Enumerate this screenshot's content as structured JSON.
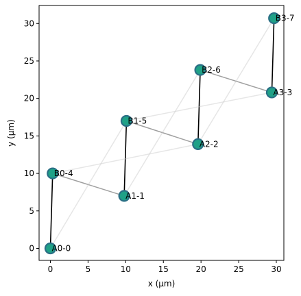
{
  "chart_data": {
    "type": "scatter",
    "title": "",
    "xlabel": "x (µm)",
    "ylabel": "y (µm)",
    "xlim": [
      -1.5,
      31.0
    ],
    "ylim": [
      -1.6,
      32.4
    ],
    "xticks": [
      0,
      5,
      10,
      15,
      20,
      25,
      30
    ],
    "yticks": [
      0,
      5,
      10,
      15,
      20,
      25,
      30
    ],
    "grid": false,
    "marker_color": "#1fa187",
    "marker_edge_color": "#2a6f85",
    "nodes": [
      {
        "label": "A0-0",
        "x": 0.0,
        "y": 0.0
      },
      {
        "label": "B0-4",
        "x": 0.3,
        "y": 10.0
      },
      {
        "label": "A1-1",
        "x": 9.8,
        "y": 7.0
      },
      {
        "label": "B1-5",
        "x": 10.1,
        "y": 17.0
      },
      {
        "label": "A2-2",
        "x": 19.6,
        "y": 13.9
      },
      {
        "label": "B2-6",
        "x": 19.9,
        "y": 23.8
      },
      {
        "label": "A3-3",
        "x": 29.4,
        "y": 20.8
      },
      {
        "label": "B3-7",
        "x": 29.7,
        "y": 30.7
      }
    ],
    "edges": [
      {
        "from": 0,
        "to": 1,
        "color": "#000000",
        "opacity": 1.0
      },
      {
        "from": 2,
        "to": 3,
        "color": "#000000",
        "opacity": 1.0
      },
      {
        "from": 4,
        "to": 5,
        "color": "#000000",
        "opacity": 1.0
      },
      {
        "from": 6,
        "to": 7,
        "color": "#000000",
        "opacity": 1.0
      },
      {
        "from": 1,
        "to": 2,
        "color": "#a0a0a0",
        "opacity": 1.0
      },
      {
        "from": 3,
        "to": 4,
        "color": "#a0a0a0",
        "opacity": 1.0
      },
      {
        "from": 5,
        "to": 6,
        "color": "#a0a0a0",
        "opacity": 1.0
      },
      {
        "from": 0,
        "to": 3,
        "color": "#c8c8c8",
        "opacity": 0.45
      },
      {
        "from": 2,
        "to": 5,
        "color": "#c8c8c8",
        "opacity": 0.45
      },
      {
        "from": 4,
        "to": 7,
        "color": "#c8c8c8",
        "opacity": 0.45
      },
      {
        "from": 1,
        "to": 4,
        "color": "#c8c8c8",
        "opacity": 0.45
      },
      {
        "from": 3,
        "to": 6,
        "color": "#c8c8c8",
        "opacity": 0.45
      }
    ]
  }
}
